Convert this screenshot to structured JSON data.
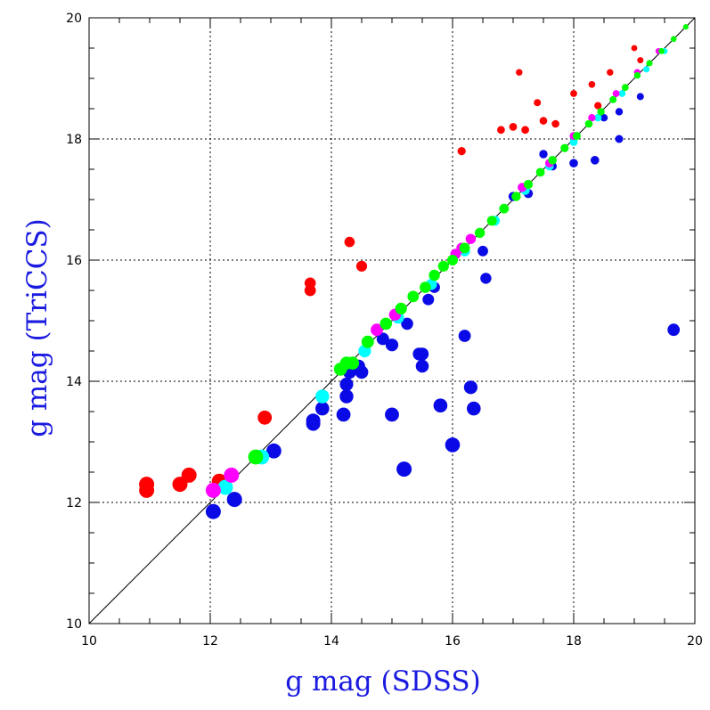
{
  "chart_data": {
    "type": "scatter",
    "title": "",
    "xlabel": "g mag (SDSS)",
    "ylabel": "g mag (TriCCS)",
    "xlim": [
      10,
      20
    ],
    "ylim": [
      10,
      20
    ],
    "x_ticks": [
      10,
      12,
      14,
      16,
      18,
      20
    ],
    "y_ticks": [
      10,
      12,
      14,
      16,
      18,
      20
    ],
    "grid": true,
    "reference_line": "y = x",
    "colors": {
      "red": "#ff0000",
      "blue": "#0a0ae6",
      "cyan": "#00ffff",
      "magenta": "#ff00ff",
      "green": "#00ff00",
      "axis_title": "#1a1ae0"
    },
    "series": [
      {
        "color": "red",
        "points": [
          [
            10.95,
            12.2
          ],
          [
            10.95,
            12.3
          ],
          [
            11.5,
            12.3
          ],
          [
            11.65,
            12.45
          ],
          [
            12.15,
            12.35
          ],
          [
            12.9,
            13.4
          ],
          [
            13.65,
            15.5
          ],
          [
            13.65,
            15.62
          ],
          [
            14.3,
            16.3
          ],
          [
            14.5,
            15.9
          ],
          [
            16.15,
            17.8
          ],
          [
            16.8,
            18.15
          ],
          [
            17.0,
            18.2
          ],
          [
            17.1,
            19.1
          ],
          [
            17.2,
            18.15
          ],
          [
            17.4,
            18.6
          ],
          [
            17.5,
            18.3
          ],
          [
            17.7,
            18.25
          ],
          [
            18.0,
            18.75
          ],
          [
            18.3,
            18.9
          ],
          [
            18.4,
            18.55
          ],
          [
            18.6,
            19.1
          ],
          [
            19.0,
            19.5
          ],
          [
            19.1,
            19.3
          ]
        ]
      },
      {
        "color": "blue",
        "points": [
          [
            12.05,
            11.85
          ],
          [
            12.4,
            12.05
          ],
          [
            13.05,
            12.85
          ],
          [
            13.7,
            13.3
          ],
          [
            13.7,
            13.35
          ],
          [
            13.85,
            13.55
          ],
          [
            14.2,
            13.45
          ],
          [
            14.25,
            13.75
          ],
          [
            14.25,
            13.95
          ],
          [
            14.3,
            14.15
          ],
          [
            14.45,
            14.25
          ],
          [
            14.5,
            14.15
          ],
          [
            14.85,
            14.7
          ],
          [
            15.0,
            14.6
          ],
          [
            15.0,
            13.45
          ],
          [
            15.2,
            12.55
          ],
          [
            15.25,
            14.95
          ],
          [
            15.45,
            14.45
          ],
          [
            15.5,
            14.25
          ],
          [
            15.5,
            14.45
          ],
          [
            15.6,
            15.35
          ],
          [
            15.7,
            15.55
          ],
          [
            15.8,
            13.6
          ],
          [
            16.0,
            12.95
          ],
          [
            16.2,
            14.75
          ],
          [
            16.3,
            13.9
          ],
          [
            16.35,
            13.55
          ],
          [
            16.5,
            16.15
          ],
          [
            16.55,
            15.7
          ],
          [
            17.0,
            17.05
          ],
          [
            17.25,
            17.1
          ],
          [
            17.5,
            17.75
          ],
          [
            17.65,
            17.55
          ],
          [
            18.0,
            17.6
          ],
          [
            18.35,
            17.65
          ],
          [
            18.5,
            18.35
          ],
          [
            18.75,
            18.45
          ],
          [
            18.75,
            18.0
          ],
          [
            19.1,
            18.7
          ],
          [
            19.65,
            14.85
          ]
        ]
      },
      {
        "color": "cyan",
        "points": [
          [
            12.25,
            12.25
          ],
          [
            12.85,
            12.75
          ],
          [
            13.85,
            13.75
          ],
          [
            14.55,
            14.5
          ],
          [
            15.1,
            15.05
          ],
          [
            15.65,
            15.6
          ],
          [
            16.2,
            16.15
          ],
          [
            16.7,
            16.65
          ],
          [
            17.2,
            17.15
          ],
          [
            17.6,
            17.55
          ],
          [
            18.0,
            17.95
          ],
          [
            18.4,
            18.35
          ],
          [
            18.8,
            18.75
          ],
          [
            19.2,
            19.15
          ],
          [
            19.5,
            19.45
          ]
        ]
      },
      {
        "color": "magenta",
        "points": [
          [
            12.05,
            12.2
          ],
          [
            12.35,
            12.45
          ],
          [
            14.75,
            14.85
          ],
          [
            15.05,
            15.1
          ],
          [
            16.05,
            16.1
          ],
          [
            16.15,
            16.2
          ],
          [
            16.3,
            16.35
          ],
          [
            17.15,
            17.2
          ],
          [
            17.6,
            17.6
          ],
          [
            18.0,
            18.05
          ],
          [
            18.3,
            18.35
          ],
          [
            18.7,
            18.75
          ],
          [
            19.05,
            19.1
          ],
          [
            19.4,
            19.45
          ]
        ]
      },
      {
        "color": "green",
        "points": [
          [
            12.75,
            12.75
          ],
          [
            14.15,
            14.2
          ],
          [
            14.25,
            14.3
          ],
          [
            14.35,
            14.3
          ],
          [
            14.6,
            14.65
          ],
          [
            14.9,
            14.95
          ],
          [
            15.15,
            15.2
          ],
          [
            15.35,
            15.4
          ],
          [
            15.55,
            15.55
          ],
          [
            15.7,
            15.75
          ],
          [
            15.85,
            15.9
          ],
          [
            16.0,
            16.0
          ],
          [
            16.2,
            16.2
          ],
          [
            16.45,
            16.45
          ],
          [
            16.65,
            16.65
          ],
          [
            16.85,
            16.85
          ],
          [
            17.05,
            17.05
          ],
          [
            17.25,
            17.25
          ],
          [
            17.45,
            17.45
          ],
          [
            17.65,
            17.65
          ],
          [
            17.85,
            17.85
          ],
          [
            18.05,
            18.05
          ],
          [
            18.25,
            18.25
          ],
          [
            18.45,
            18.45
          ],
          [
            18.65,
            18.65
          ],
          [
            18.85,
            18.85
          ],
          [
            19.05,
            19.05
          ],
          [
            19.25,
            19.25
          ],
          [
            19.45,
            19.45
          ],
          [
            19.65,
            19.65
          ],
          [
            19.85,
            19.85
          ]
        ]
      }
    ]
  }
}
